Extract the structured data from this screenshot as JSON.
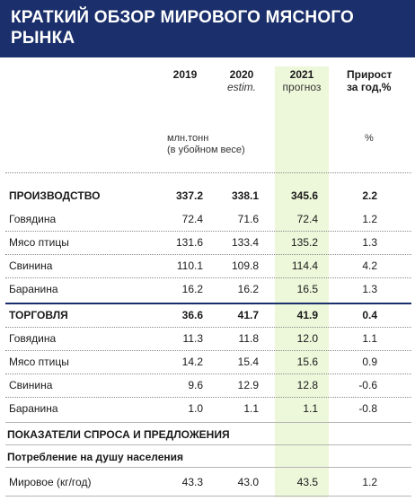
{
  "title": "КРАТКИЙ ОБЗОР МИРОВОГО МЯСНОГО РЫНКА",
  "columns": {
    "y2019": "2019",
    "y2020": "2020",
    "y2020_note": "estim.",
    "y2021": "2021",
    "y2021_note": "прогноз",
    "growth_line1": "Прирост",
    "growth_line2": "за год,%"
  },
  "units": {
    "line1": "млн.тонн",
    "line2": "(в убойном весе)",
    "percent": "%"
  },
  "production": {
    "label": "ПРОИЗВОДСТВО",
    "values": [
      "337.2",
      "338.1",
      "345.6",
      "2.2"
    ],
    "rows": [
      {
        "label": "Говядина",
        "values": [
          "72.4",
          "71.6",
          "72.4",
          "1.2"
        ]
      },
      {
        "label": "Мясо птицы",
        "values": [
          "131.6",
          "133.4",
          "135.2",
          "1.3"
        ]
      },
      {
        "label": "Свинина",
        "values": [
          "110.1",
          "109.8",
          "114.4",
          "4.2"
        ]
      },
      {
        "label": "Баранина",
        "values": [
          "16.2",
          "16.2",
          "16.5",
          "1.3"
        ]
      }
    ]
  },
  "trade": {
    "label": "ТОРГОВЛЯ",
    "values": [
      "36.6",
      "41.7",
      "41.9",
      "0.4"
    ],
    "rows": [
      {
        "label": "Говядина",
        "values": [
          "11.3",
          "11.8",
          "12.0",
          "1.1"
        ]
      },
      {
        "label": "Мясо птицы",
        "values": [
          "14.2",
          "15.4",
          "15.6",
          "0.9"
        ]
      },
      {
        "label": "Свинина",
        "values": [
          "9.6",
          "12.9",
          "12.8",
          "-0.6"
        ]
      },
      {
        "label": "Баранина",
        "values": [
          "1.0",
          "1.1",
          "1.1",
          "-0.8"
        ]
      }
    ]
  },
  "indicators": {
    "section_label": "ПОКАЗАТЕЛИ СПРОСА И ПРЕДЛОЖЕНИЯ",
    "subsection_label": "Потребление на душу населения",
    "rows": [
      {
        "label": "Мировое (кг/год)",
        "values": [
          "43.3",
          "43.0",
          "43.5",
          "1.2"
        ]
      }
    ]
  }
}
